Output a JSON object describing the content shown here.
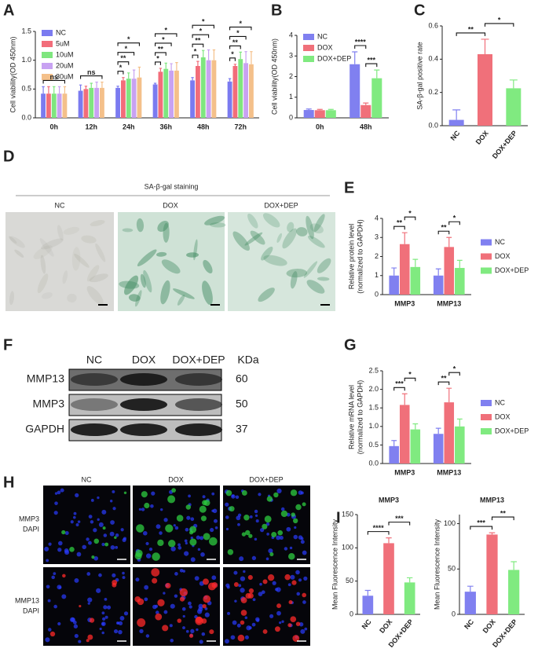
{
  "panel_letters": [
    "A",
    "B",
    "C",
    "D",
    "E",
    "F",
    "G",
    "H",
    "I"
  ],
  "chart_data": [
    {
      "type": "bar",
      "ylabel": "Cell viability(OD 450nm)",
      "legend": "upper left",
      "categories": [
        "0h",
        "12h",
        "24h",
        "36h",
        "48h",
        "72h"
      ],
      "series": [
        {
          "name": "NC",
          "color": "#7b7bf0",
          "values": [
            0.42,
            0.47,
            0.52,
            0.58,
            0.65,
            0.63
          ],
          "errors": [
            0.12,
            0.1,
            0.03,
            0.02,
            0.05,
            0.05
          ]
        },
        {
          "name": "5uM",
          "color": "#f26d7a",
          "values": [
            0.42,
            0.5,
            0.65,
            0.8,
            0.9,
            0.9
          ],
          "errors": [
            0.12,
            0.05,
            0.05,
            0.06,
            0.08,
            0.03
          ]
        },
        {
          "name": "10uM",
          "color": "#7fe67f",
          "values": [
            0.42,
            0.52,
            0.68,
            0.85,
            1.05,
            1.02
          ],
          "errors": [
            0.12,
            0.08,
            0.1,
            0.1,
            0.12,
            0.12
          ]
        },
        {
          "name": "20uM",
          "color": "#c8a2f2",
          "values": [
            0.42,
            0.52,
            0.68,
            0.82,
            1.0,
            0.95
          ],
          "errors": [
            0.12,
            0.1,
            0.15,
            0.12,
            0.18,
            0.2
          ]
        },
        {
          "name": "30uM",
          "color": "#f4c08a",
          "values": [
            0.42,
            0.52,
            0.7,
            0.82,
            1.0,
            0.93
          ],
          "errors": [
            0.12,
            0.1,
            0.18,
            0.14,
            0.18,
            0.22
          ]
        }
      ],
      "ylim": [
        0,
        1.5
      ],
      "yticks": [
        {
          "value": 0,
          "label": "0.0"
        },
        {
          "value": 0.5,
          "label": "0.5"
        },
        {
          "value": 1,
          "label": "1.0"
        },
        {
          "value": 1.5,
          "label": "1.5"
        }
      ],
      "annotations": [
        {
          "category": "0h",
          "from": "NC",
          "to": "30uM",
          "text": "ns"
        },
        {
          "category": "12h",
          "from": "NC",
          "to": "30uM",
          "text": "ns"
        },
        {
          "category": "24h",
          "from": "NC",
          "to": "5uM",
          "text": "*"
        },
        {
          "category": "24h",
          "from": "NC",
          "to": "10uM",
          "text": "**"
        },
        {
          "category": "24h",
          "from": "NC",
          "to": "20uM",
          "text": "*"
        },
        {
          "category": "24h",
          "from": "NC",
          "to": "30uM",
          "text": "*"
        },
        {
          "category": "36h",
          "from": "NC",
          "to": "5uM",
          "text": "*"
        },
        {
          "category": "36h",
          "from": "NC",
          "to": "10uM",
          "text": "**"
        },
        {
          "category": "36h",
          "from": "NC",
          "to": "20uM",
          "text": "*"
        },
        {
          "category": "36h",
          "from": "NC",
          "to": "30uM",
          "text": "*"
        },
        {
          "category": "48h",
          "from": "NC",
          "to": "5uM",
          "text": "*"
        },
        {
          "category": "48h",
          "from": "NC",
          "to": "10uM",
          "text": "**"
        },
        {
          "category": "48h",
          "from": "NC",
          "to": "20uM",
          "text": "*"
        },
        {
          "category": "48h",
          "from": "NC",
          "to": "30uM",
          "text": "*"
        },
        {
          "category": "72h",
          "from": "NC",
          "to": "5uM",
          "text": "*"
        },
        {
          "category": "72h",
          "from": "NC",
          "to": "10uM",
          "text": "**"
        },
        {
          "category": "72h",
          "from": "NC",
          "to": "20uM",
          "text": "*"
        },
        {
          "category": "72h",
          "from": "NC",
          "to": "30uM",
          "text": "*"
        }
      ]
    },
    {
      "type": "bar",
      "ylabel": "Cell viability(OD 450nm)",
      "legend": "upper left",
      "categories": [
        "0h",
        "48h"
      ],
      "series": [
        {
          "name": "NC",
          "color": "#8080f0",
          "values": [
            0.38,
            2.6
          ],
          "errors": [
            0.05,
            0.6
          ]
        },
        {
          "name": "DOX",
          "color": "#f0707a",
          "values": [
            0.37,
            0.62
          ],
          "errors": [
            0.04,
            0.1
          ]
        },
        {
          "name": "DOX+DEP",
          "color": "#80ea80",
          "values": [
            0.37,
            1.92
          ],
          "errors": [
            0.04,
            0.4
          ]
        }
      ],
      "ylim": [
        0,
        4
      ],
      "yticks": [
        0,
        1,
        2,
        3,
        4
      ],
      "annotations": [
        {
          "category": "48h",
          "from": "DOX",
          "to": "DOX+DEP",
          "text": "***"
        },
        {
          "category": "48h",
          "from": "NC",
          "to": "DOX",
          "text": "****"
        }
      ]
    },
    {
      "type": "bar",
      "ylabel": "SA-β-gal positive rate",
      "categories": [
        "NC",
        "DOX",
        "DOX+DEP"
      ],
      "values": [
        0.035,
        0.43,
        0.225
      ],
      "errors": [
        0.06,
        0.09,
        0.05
      ],
      "colors": [
        "#8080f0",
        "#f0707a",
        "#80ea80"
      ],
      "ylim": [
        0,
        0.6
      ],
      "yticks": [
        {
          "value": 0,
          "label": "0.0"
        },
        {
          "value": 0.2,
          "label": "0.2"
        },
        {
          "value": 0.4,
          "label": "0.4"
        },
        {
          "value": 0.6,
          "label": "0.6"
        }
      ],
      "annotations": [
        {
          "from": "NC",
          "to": "DOX",
          "text": "**"
        },
        {
          "from": "DOX",
          "to": "DOX+DEP",
          "text": "*"
        }
      ]
    },
    {
      "type": "bar",
      "ylabel": [
        "Relative protein level",
        "(normalized to GAPDH)"
      ],
      "legend": "right",
      "categories": [
        "MMP3",
        "MMP13"
      ],
      "series": [
        {
          "name": "NC",
          "color": "#8080f0",
          "values": [
            1.0,
            1.0
          ],
          "errors": [
            0.4,
            0.35
          ]
        },
        {
          "name": "DOX",
          "color": "#f0707a",
          "values": [
            2.65,
            2.5
          ],
          "errors": [
            0.6,
            0.5
          ]
        },
        {
          "name": "DOX+DEP",
          "color": "#80ea80",
          "values": [
            1.45,
            1.4
          ],
          "errors": [
            0.4,
            0.4
          ]
        }
      ],
      "ylim": [
        0,
        4
      ],
      "yticks": [
        0,
        1,
        2,
        3,
        4
      ],
      "annotations": [
        {
          "category": "MMP3",
          "from": "NC",
          "to": "DOX",
          "text": "**"
        },
        {
          "category": "MMP3",
          "from": "DOX",
          "to": "DOX+DEP",
          "text": "*"
        },
        {
          "category": "MMP13",
          "from": "NC",
          "to": "DOX",
          "text": "**"
        },
        {
          "category": "MMP13",
          "from": "DOX",
          "to": "DOX+DEP",
          "text": "*"
        }
      ]
    },
    {
      "type": "bar",
      "ylabel": [
        "Relative mRNA level",
        "(normalized to GAPDH)"
      ],
      "legend": "right",
      "categories": [
        "MMP3",
        "MMP13"
      ],
      "series": [
        {
          "name": "NC",
          "color": "#8080f0",
          "values": [
            0.47,
            0.8
          ],
          "errors": [
            0.15,
            0.15
          ]
        },
        {
          "name": "DOX",
          "color": "#f0707a",
          "values": [
            1.58,
            1.65
          ],
          "errors": [
            0.3,
            0.38
          ]
        },
        {
          "name": "DOX+DEP",
          "color": "#80ea80",
          "values": [
            0.92,
            1.0
          ],
          "errors": [
            0.15,
            0.2
          ]
        }
      ],
      "ylim": [
        0,
        2.5
      ],
      "yticks": [
        {
          "value": 0,
          "label": "0.0"
        },
        {
          "value": 0.5,
          "label": "0.5"
        },
        {
          "value": 1,
          "label": "1.0"
        },
        {
          "value": 1.5,
          "label": "1.5"
        },
        {
          "value": 2,
          "label": "2.0"
        },
        {
          "value": 2.5,
          "label": "2.5"
        }
      ],
      "annotations": [
        {
          "category": "MMP3",
          "from": "NC",
          "to": "DOX",
          "text": "***"
        },
        {
          "category": "MMP3",
          "from": "DOX",
          "to": "DOX+DEP",
          "text": "*"
        },
        {
          "category": "MMP13",
          "from": "NC",
          "to": "DOX",
          "text": "**"
        },
        {
          "category": "MMP13",
          "from": "DOX",
          "to": "DOX+DEP",
          "text": "*"
        }
      ]
    },
    {
      "type": "bar",
      "title": "MMP3",
      "ylabel": "Mean Fluorescence Intensity",
      "categories": [
        "NC",
        "DOX",
        "DOX+DEP"
      ],
      "values": [
        28,
        107,
        48
      ],
      "errors": [
        8,
        8,
        7
      ],
      "colors": [
        "#8080f0",
        "#f0707a",
        "#80ea80"
      ],
      "ylim": [
        0,
        150
      ],
      "yticks": [
        0,
        50,
        100,
        150
      ],
      "annotations": [
        {
          "from": "NC",
          "to": "DOX",
          "text": "****"
        },
        {
          "from": "DOX",
          "to": "DOX+DEP",
          "text": "***"
        }
      ]
    },
    {
      "type": "bar",
      "title": "MMP13",
      "ylabel": "Mean Fluorescence Intensity",
      "categories": [
        "NC",
        "DOX",
        "DOX+DEP"
      ],
      "values": [
        25,
        88,
        49
      ],
      "errors": [
        6,
        2,
        9
      ],
      "colors": [
        "#8080f0",
        "#f0707a",
        "#80ea80"
      ],
      "ylim": [
        0,
        110
      ],
      "yticks": [
        0,
        50,
        100
      ],
      "annotations": [
        {
          "from": "NC",
          "to": "DOX",
          "text": "***"
        },
        {
          "from": "DOX",
          "to": "DOX+DEP",
          "text": "**"
        }
      ]
    }
  ],
  "staining": {
    "title": "SA-β-gal staining",
    "columns": [
      "NC",
      "DOX",
      "DOX+DEP"
    ]
  },
  "western_blot": {
    "columns": [
      "NC",
      "DOX",
      "DOX+DEP"
    ],
    "unit": "KDa",
    "rows": [
      {
        "name": "MMP13",
        "kda": 60
      },
      {
        "name": "MMP3",
        "kda": 50
      },
      {
        "name": "GAPDH",
        "kda": 37
      }
    ]
  },
  "immunofluorescence": {
    "columns": [
      "NC",
      "DOX",
      "DOX+DEP"
    ],
    "rows": [
      {
        "marker": "MMP3",
        "stain": "DAPI"
      },
      {
        "marker": "MMP13",
        "stain": "DAPI"
      }
    ]
  }
}
